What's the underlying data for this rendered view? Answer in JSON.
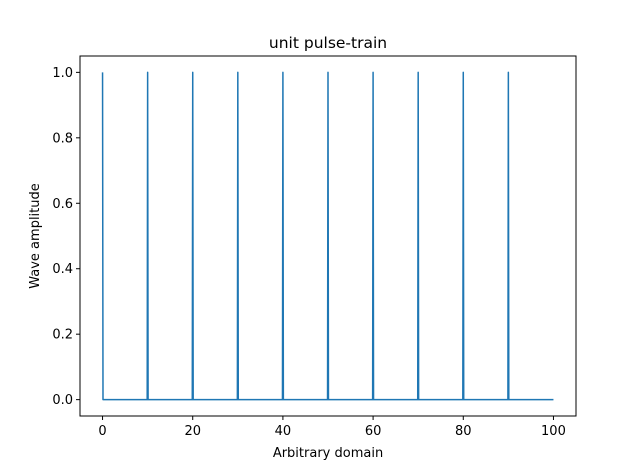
{
  "chart_data": {
    "type": "line",
    "title": "unit pulse-train",
    "xlabel": "Arbitrary domain",
    "ylabel": "Wave amplitude",
    "xlim": [
      -5,
      105
    ],
    "ylim": [
      -0.05,
      1.05
    ],
    "xticks": [
      0,
      20,
      40,
      60,
      80,
      100
    ],
    "yticks": [
      0.0,
      0.2,
      0.4,
      0.6,
      0.8,
      1.0
    ],
    "xtick_labels": [
      "0",
      "20",
      "40",
      "60",
      "80",
      "100"
    ],
    "ytick_labels": [
      "0.0",
      "0.2",
      "0.4",
      "0.6",
      "0.8",
      "1.0"
    ],
    "grid": false,
    "series": [
      {
        "color": "#1f77b4",
        "x_range": [
          0,
          100
        ],
        "baseline": 0.0,
        "pulse_height": 1.0,
        "pulse_positions": [
          0,
          10,
          20,
          30,
          40,
          50,
          60,
          70,
          80,
          90
        ]
      }
    ]
  }
}
